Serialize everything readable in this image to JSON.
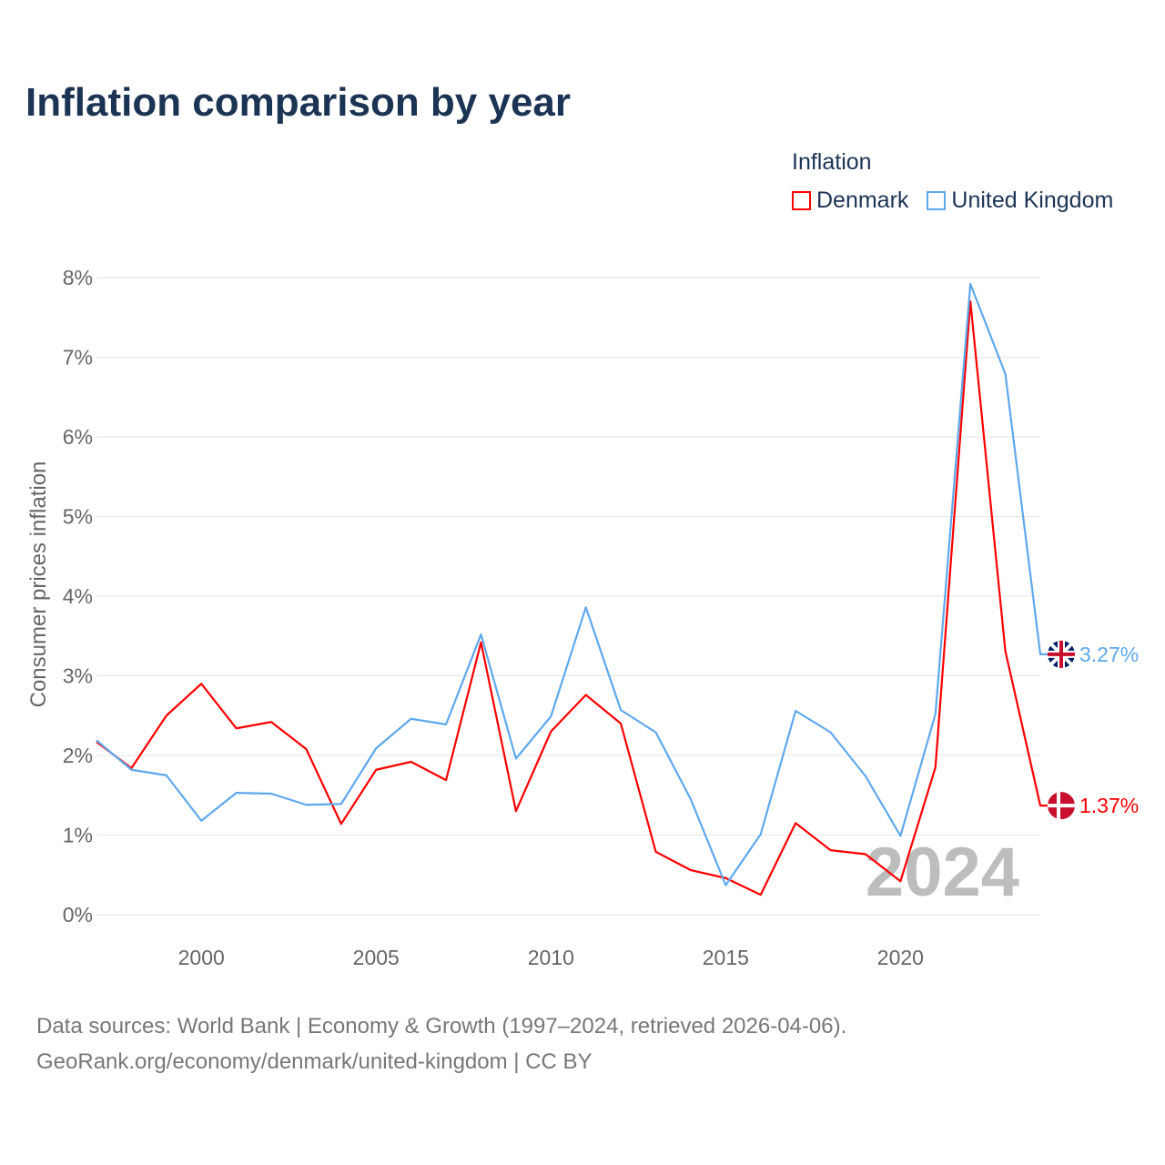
{
  "title": "Inflation comparison by year",
  "legend": {
    "title": "Inflation",
    "items": [
      "Denmark",
      "United Kingdom"
    ]
  },
  "source": {
    "line1": "Data sources: World Bank | Economy & Growth (1997–2024, retrieved 2026-04-06).",
    "line2": "GeoRank.org/economy/denmark/united-kingdom | CC BY"
  },
  "chart_data": {
    "type": "line",
    "title": "Inflation comparison by year",
    "xlabel": "",
    "ylabel": "Consumer prices inflation",
    "year_watermark": "2024",
    "x": [
      1997,
      1998,
      1999,
      2000,
      2001,
      2002,
      2003,
      2004,
      2005,
      2006,
      2007,
      2008,
      2009,
      2010,
      2011,
      2012,
      2013,
      2014,
      2015,
      2016,
      2017,
      2018,
      2019,
      2020,
      2021,
      2022,
      2023,
      2024
    ],
    "xlim": [
      1997,
      2024
    ],
    "ylim": [
      0,
      8
    ],
    "xticks": [
      2000,
      2005,
      2010,
      2015,
      2020
    ],
    "yticks": [
      "0%",
      "1%",
      "2%",
      "3%",
      "4%",
      "5%",
      "6%",
      "7%",
      "8%"
    ],
    "grid": true,
    "legend_position": "top-right",
    "series": [
      {
        "name": "Denmark",
        "color": "#ff0000",
        "end_label": "1.37%",
        "values": [
          2.17,
          1.84,
          2.5,
          2.9,
          2.34,
          2.42,
          2.08,
          1.14,
          1.82,
          1.92,
          1.69,
          3.42,
          1.3,
          2.3,
          2.76,
          2.4,
          0.79,
          0.56,
          0.46,
          0.25,
          1.15,
          0.81,
          0.76,
          0.42,
          1.85,
          7.7,
          3.31,
          1.37
        ]
      },
      {
        "name": "United Kingdom",
        "color": "#5ea8ec",
        "end_label": "3.27%",
        "values": [
          2.19,
          1.82,
          1.75,
          1.18,
          1.53,
          1.52,
          1.38,
          1.39,
          2.09,
          2.46,
          2.39,
          3.52,
          1.96,
          2.49,
          3.86,
          2.57,
          2.29,
          1.45,
          0.37,
          1.01,
          2.56,
          2.29,
          1.74,
          0.99,
          2.52,
          7.92,
          6.79,
          3.27
        ]
      }
    ]
  }
}
